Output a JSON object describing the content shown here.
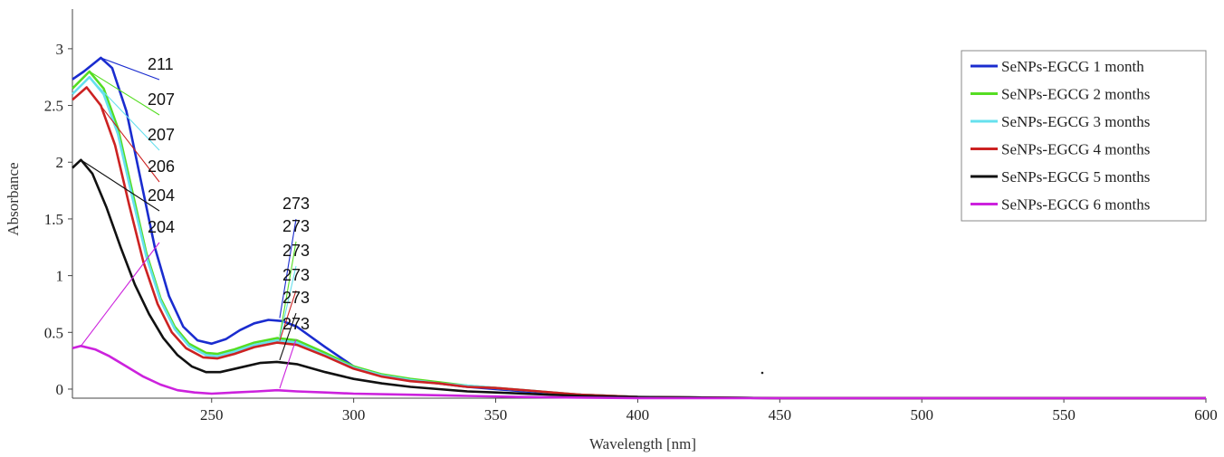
{
  "chart_data": {
    "type": "line",
    "title": "",
    "xlabel": "Wavelength [nm]",
    "ylabel": "Absorbance",
    "xlim": [
      201,
      600
    ],
    "ylim": [
      -0.08,
      3.35
    ],
    "x_ticks": [
      250,
      300,
      350,
      400,
      450,
      500,
      550,
      600
    ],
    "y_ticks": [
      0,
      0.5,
      1,
      1.5,
      2,
      2.5,
      3
    ],
    "legend_position": "top-right",
    "grid": false,
    "series": [
      {
        "name": "SeNPs-EGCG 1 month",
        "color": "#1a2ccf",
        "points": [
          [
            201,
            2.73
          ],
          [
            205,
            2.8
          ],
          [
            211,
            2.92
          ],
          [
            215,
            2.83
          ],
          [
            220,
            2.45
          ],
          [
            225,
            1.85
          ],
          [
            230,
            1.25
          ],
          [
            235,
            0.82
          ],
          [
            240,
            0.55
          ],
          [
            245,
            0.43
          ],
          [
            250,
            0.4
          ],
          [
            255,
            0.44
          ],
          [
            260,
            0.52
          ],
          [
            265,
            0.58
          ],
          [
            270,
            0.61
          ],
          [
            275,
            0.6
          ],
          [
            280,
            0.55
          ],
          [
            290,
            0.37
          ],
          [
            300,
            0.2
          ],
          [
            310,
            0.12
          ],
          [
            320,
            0.08
          ],
          [
            330,
            0.05
          ],
          [
            340,
            0.02
          ],
          [
            350,
            0.0
          ],
          [
            360,
            -0.02
          ],
          [
            380,
            -0.05
          ],
          [
            400,
            -0.07
          ],
          [
            450,
            -0.08
          ],
          [
            500,
            -0.08
          ],
          [
            600,
            -0.08
          ]
        ],
        "peaks": [
          {
            "x": 211,
            "y": 2.92,
            "label": "211"
          },
          {
            "x": 273,
            "y": 0.61,
            "label": "273"
          }
        ]
      },
      {
        "name": "SeNPs-EGCG 2 months",
        "color": "#55dd22",
        "points": [
          [
            201,
            2.65
          ],
          [
            207,
            2.8
          ],
          [
            212,
            2.65
          ],
          [
            217,
            2.3
          ],
          [
            222,
            1.75
          ],
          [
            227,
            1.2
          ],
          [
            232,
            0.8
          ],
          [
            237,
            0.55
          ],
          [
            242,
            0.4
          ],
          [
            248,
            0.32
          ],
          [
            252,
            0.31
          ],
          [
            258,
            0.35
          ],
          [
            265,
            0.41
          ],
          [
            273,
            0.45
          ],
          [
            280,
            0.43
          ],
          [
            290,
            0.32
          ],
          [
            300,
            0.2
          ],
          [
            310,
            0.13
          ],
          [
            320,
            0.09
          ],
          [
            330,
            0.06
          ],
          [
            340,
            0.03
          ],
          [
            350,
            0.01
          ],
          [
            360,
            -0.01
          ],
          [
            380,
            -0.05
          ],
          [
            400,
            -0.07
          ],
          [
            450,
            -0.08
          ],
          [
            600,
            -0.08
          ]
        ],
        "peaks": [
          {
            "x": 207,
            "y": 2.8,
            "label": "207"
          },
          {
            "x": 273,
            "y": 0.45,
            "label": "273"
          }
        ]
      },
      {
        "name": "SeNPs-EGCG 3 months",
        "color": "#66e0ee",
        "points": [
          [
            201,
            2.6
          ],
          [
            207,
            2.75
          ],
          [
            212,
            2.6
          ],
          [
            217,
            2.25
          ],
          [
            222,
            1.7
          ],
          [
            227,
            1.17
          ],
          [
            232,
            0.78
          ],
          [
            237,
            0.53
          ],
          [
            242,
            0.38
          ],
          [
            248,
            0.3
          ],
          [
            252,
            0.29
          ],
          [
            258,
            0.33
          ],
          [
            265,
            0.39
          ],
          [
            273,
            0.43
          ],
          [
            280,
            0.41
          ],
          [
            290,
            0.3
          ],
          [
            300,
            0.19
          ],
          [
            310,
            0.12
          ],
          [
            320,
            0.08
          ],
          [
            330,
            0.05
          ],
          [
            340,
            0.03
          ],
          [
            350,
            0.01
          ],
          [
            360,
            -0.01
          ],
          [
            380,
            -0.05
          ],
          [
            400,
            -0.07
          ],
          [
            450,
            -0.08
          ],
          [
            600,
            -0.08
          ]
        ],
        "peaks": [
          {
            "x": 207,
            "y": 2.75,
            "label": "207"
          },
          {
            "x": 273,
            "y": 0.43,
            "label": "273"
          }
        ]
      },
      {
        "name": "SeNPs-EGCG 4 months",
        "color": "#cc2222",
        "points": [
          [
            201,
            2.55
          ],
          [
            206,
            2.66
          ],
          [
            211,
            2.5
          ],
          [
            216,
            2.15
          ],
          [
            221,
            1.62
          ],
          [
            226,
            1.12
          ],
          [
            231,
            0.75
          ],
          [
            236,
            0.5
          ],
          [
            241,
            0.36
          ],
          [
            247,
            0.28
          ],
          [
            252,
            0.27
          ],
          [
            258,
            0.31
          ],
          [
            265,
            0.37
          ],
          [
            273,
            0.41
          ],
          [
            280,
            0.39
          ],
          [
            290,
            0.29
          ],
          [
            300,
            0.18
          ],
          [
            310,
            0.11
          ],
          [
            320,
            0.07
          ],
          [
            330,
            0.05
          ],
          [
            340,
            0.02
          ],
          [
            350,
            0.01
          ],
          [
            360,
            -0.01
          ],
          [
            380,
            -0.05
          ],
          [
            400,
            -0.07
          ],
          [
            450,
            -0.08
          ],
          [
            600,
            -0.08
          ]
        ],
        "peaks": [
          {
            "x": 206,
            "y": 2.66,
            "label": "206"
          },
          {
            "x": 273,
            "y": 0.41,
            "label": "273"
          }
        ]
      },
      {
        "name": "SeNPs-EGCG 5 months",
        "color": "#111111",
        "points": [
          [
            201,
            1.95
          ],
          [
            204,
            2.02
          ],
          [
            208,
            1.9
          ],
          [
            213,
            1.6
          ],
          [
            218,
            1.25
          ],
          [
            223,
            0.92
          ],
          [
            228,
            0.66
          ],
          [
            233,
            0.45
          ],
          [
            238,
            0.3
          ],
          [
            243,
            0.2
          ],
          [
            248,
            0.15
          ],
          [
            253,
            0.15
          ],
          [
            260,
            0.19
          ],
          [
            267,
            0.23
          ],
          [
            273,
            0.24
          ],
          [
            280,
            0.22
          ],
          [
            290,
            0.15
          ],
          [
            300,
            0.09
          ],
          [
            310,
            0.05
          ],
          [
            320,
            0.02
          ],
          [
            330,
            0.0
          ],
          [
            340,
            -0.02
          ],
          [
            350,
            -0.03
          ],
          [
            360,
            -0.04
          ],
          [
            380,
            -0.06
          ],
          [
            400,
            -0.07
          ],
          [
            450,
            -0.08
          ],
          [
            600,
            -0.08
          ]
        ],
        "peaks": [
          {
            "x": 204,
            "y": 2.02,
            "label": "204"
          },
          {
            "x": 273,
            "y": 0.24,
            "label": "273"
          }
        ]
      },
      {
        "name": "SeNPs-EGCG 6 months",
        "color": "#cc22dd",
        "points": [
          [
            201,
            0.36
          ],
          [
            204,
            0.38
          ],
          [
            209,
            0.35
          ],
          [
            214,
            0.29
          ],
          [
            220,
            0.2
          ],
          [
            226,
            0.11
          ],
          [
            232,
            0.04
          ],
          [
            238,
            -0.01
          ],
          [
            244,
            -0.03
          ],
          [
            250,
            -0.04
          ],
          [
            258,
            -0.03
          ],
          [
            266,
            -0.02
          ],
          [
            273,
            -0.01
          ],
          [
            280,
            -0.02
          ],
          [
            290,
            -0.03
          ],
          [
            300,
            -0.04
          ],
          [
            320,
            -0.05
          ],
          [
            340,
            -0.06
          ],
          [
            360,
            -0.07
          ],
          [
            400,
            -0.08
          ],
          [
            450,
            -0.08
          ],
          [
            600,
            -0.08
          ]
        ],
        "peaks": [
          {
            "x": 204,
            "y": 0.38,
            "label": "204"
          },
          {
            "x": 273,
            "y": -0.01,
            "label": "273"
          }
        ]
      }
    ]
  }
}
